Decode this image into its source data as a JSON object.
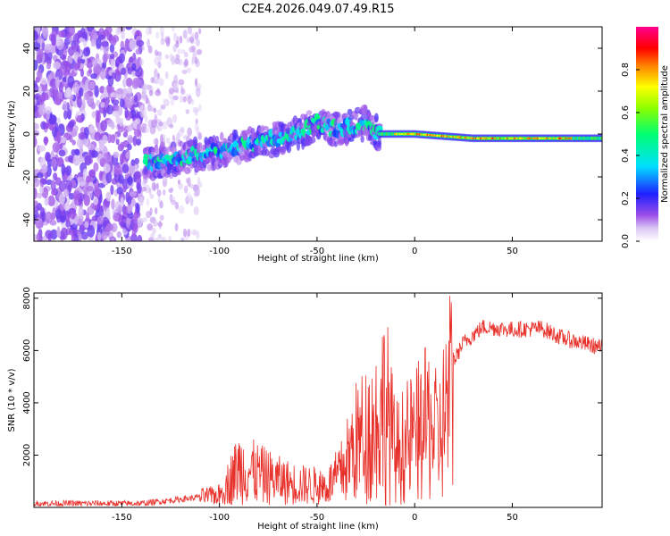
{
  "title": "C2E4.2026.049.07.49.R15",
  "colors": {
    "snr_line": "#e8302a",
    "spectro_scatter": "#7a2ee0",
    "frame": "#000000"
  },
  "chart_data": [
    {
      "type": "heatmap",
      "name": "spectrogram",
      "xlabel": "Height of straight line (km)",
      "ylabel": "Frequency (Hz)",
      "xlim": [
        -195,
        96
      ],
      "ylim": [
        -50,
        50
      ],
      "xticks": [
        -150,
        -100,
        -50,
        0,
        50
      ],
      "yticks": [
        -40,
        -20,
        0,
        20,
        40
      ],
      "colorbar": {
        "label": "Normalized spectral amplitude",
        "range": [
          0.0,
          1.0
        ],
        "ticks": [
          "0.0",
          "0.2",
          "0.4",
          "0.6",
          "0.8"
        ],
        "colormap": "rainbow-white-to-magenta"
      },
      "features": {
        "noise_region_km": [
          -195,
          -140
        ],
        "signal_trace": [
          {
            "height_km": -138,
            "freq_hz": -14
          },
          {
            "height_km": -120,
            "freq_hz": -11
          },
          {
            "height_km": -100,
            "freq_hz": -8
          },
          {
            "height_km": -80,
            "freq_hz": -4
          },
          {
            "height_km": -60,
            "freq_hz": 0
          },
          {
            "height_km": -50,
            "freq_hz": 5
          },
          {
            "height_km": -40,
            "freq_hz": 2
          },
          {
            "height_km": -25,
            "freq_hz": 5
          },
          {
            "height_km": -18,
            "freq_hz": 0
          },
          {
            "height_km": 0,
            "freq_hz": 0
          },
          {
            "height_km": 30,
            "freq_hz": -2
          },
          {
            "height_km": 60,
            "freq_hz": -2
          },
          {
            "height_km": 96,
            "freq_hz": -2
          }
        ]
      }
    },
    {
      "type": "line",
      "name": "snr",
      "xlabel": "Height of straight line (km)",
      "ylabel": "SNR (10 * v/v)",
      "xlim": [
        -195,
        96
      ],
      "ylim": [
        0,
        8200
      ],
      "xticks": [
        -150,
        -100,
        -50,
        0,
        50
      ],
      "yticks": [
        2000,
        4000,
        6000,
        8000
      ],
      "series": [
        {
          "name": "SNR",
          "envelope": [
            {
              "x": -195,
              "y": 150
            },
            {
              "x": -140,
              "y": 150
            },
            {
              "x": -115,
              "y": 350
            },
            {
              "x": -100,
              "y": 500
            },
            {
              "x": -90,
              "y": 1800
            },
            {
              "x": -80,
              "y": 1500
            },
            {
              "x": -70,
              "y": 1200
            },
            {
              "x": -60,
              "y": 1000
            },
            {
              "x": -45,
              "y": 900
            },
            {
              "x": -38,
              "y": 1500
            },
            {
              "x": -30,
              "y": 3000
            },
            {
              "x": -20,
              "y": 3800
            },
            {
              "x": -15,
              "y": 5000
            },
            {
              "x": -10,
              "y": 2500
            },
            {
              "x": 0,
              "y": 3300
            },
            {
              "x": 8,
              "y": 4000
            },
            {
              "x": 12,
              "y": 3000
            },
            {
              "x": 18,
              "y": 5300
            },
            {
              "x": 25,
              "y": 6300
            },
            {
              "x": 35,
              "y": 6900
            },
            {
              "x": 50,
              "y": 6800
            },
            {
              "x": 65,
              "y": 6850
            },
            {
              "x": 75,
              "y": 6500
            },
            {
              "x": 85,
              "y": 6300
            },
            {
              "x": 96,
              "y": 6100
            }
          ]
        }
      ]
    }
  ]
}
